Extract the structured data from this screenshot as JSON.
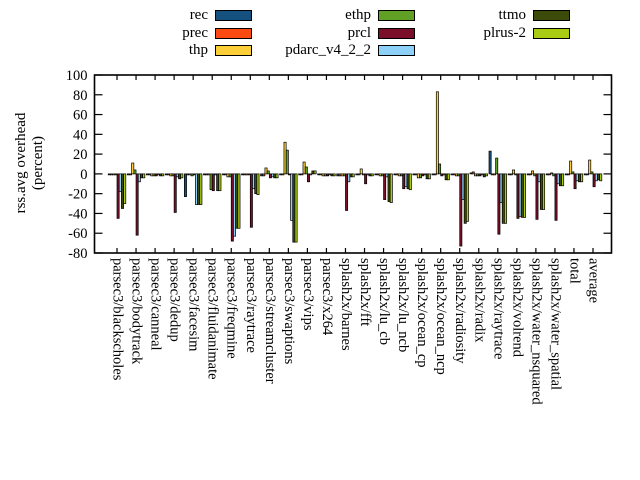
{
  "chart_data": {
    "type": "bar",
    "title": "",
    "ylabel": "rss.avg overhead (percent)",
    "ylabel_lines": [
      "rss.avg overhead",
      "(percent)"
    ],
    "ylim": [
      -80,
      100
    ],
    "yticks": [
      100,
      80,
      60,
      40,
      20,
      0,
      -20,
      -40,
      -60,
      -80
    ],
    "grid": false,
    "legend_position": "top-center-3-columns",
    "bar_border_color": "#000000",
    "categories": [
      "parsec3/blackscholes",
      "parsec3/bodytrack",
      "parsec3/canneal",
      "parsec3/dedup",
      "parsec3/facesim",
      "parsec3/fluidanimate",
      "parsec3/freqmine",
      "parsec3/raytrace",
      "parsec3/streamcluster",
      "parsec3/swaptions",
      "parsec3/vips",
      "parsec3/x264",
      "splash2x/barnes",
      "splash2x/fft",
      "splash2x/lu_cb",
      "splash2x/lu_ncb",
      "splash2x/ocean_cp",
      "splash2x/ocean_ncp",
      "splash2x/radiosity",
      "splash2x/radix",
      "splash2x/raytrace",
      "splash2x/volrend",
      "splash2x/water_nsquared",
      "splash2x/water_spatial",
      "total",
      "average"
    ],
    "series": [
      {
        "name": "rec",
        "color": "#15517f",
        "legend_col": 0,
        "legend_row": 0,
        "values": [
          -1,
          -1,
          -1,
          -1,
          -23,
          -1,
          -1,
          -1,
          -2,
          -1,
          -1,
          -1,
          -2,
          -1,
          -1,
          -1,
          -1,
          -1,
          -1,
          1,
          23,
          -1,
          -1,
          -1,
          -1,
          -1
        ]
      },
      {
        "name": "prec",
        "color": "#fb4a12",
        "legend_col": 0,
        "legend_row": 1,
        "values": [
          -1,
          -1,
          -1,
          -1,
          -1,
          -1,
          -1,
          -1,
          -2,
          -1,
          -1,
          -1,
          -2,
          -1,
          -1,
          -1,
          -1,
          -1,
          -1,
          2,
          -1,
          -1,
          -1,
          -1,
          -1,
          -1
        ]
      },
      {
        "name": "thp",
        "color": "#fccf38",
        "legend_col": 0,
        "legend_row": 2,
        "values": [
          -1,
          11,
          -2,
          -2,
          -1,
          -1,
          -3,
          -1,
          6,
          32,
          12,
          -2,
          -2,
          5,
          -2,
          -2,
          -4,
          83,
          -2,
          -2,
          -1,
          4,
          3,
          1,
          13,
          14
        ]
      },
      {
        "name": "ethp",
        "color": "#60a125",
        "legend_col": 1,
        "legend_row": 0,
        "values": [
          -1,
          4,
          -2,
          -2,
          -2,
          -16,
          -3,
          -1,
          3,
          24,
          7,
          -2,
          -2,
          -1,
          -2,
          -2,
          -4,
          10,
          -2,
          -2,
          16,
          -1,
          -2,
          -2,
          2,
          2
        ]
      },
      {
        "name": "prcl",
        "color": "#7b0e28",
        "legend_col": 1,
        "legend_row": 1,
        "values": [
          -45,
          -62,
          -2,
          -39,
          -1,
          -17,
          -68,
          -54,
          -4,
          -1,
          -8,
          -2,
          -37,
          -10,
          -26,
          -15,
          -2,
          -2,
          -73,
          -2,
          -61,
          -45,
          -46,
          -47,
          -15,
          -13
        ]
      },
      {
        "name": "pdarc_v4_2_2",
        "color": "#8dd0f8",
        "legend_col": 1,
        "legend_row": 2,
        "values": [
          -18,
          -8,
          -1,
          -3,
          -31,
          -1,
          -63,
          -15,
          -3,
          -47,
          -1,
          -1,
          -8,
          -1,
          -3,
          -13,
          -1,
          -1,
          -26,
          -1,
          -29,
          -43,
          -8,
          -10,
          -7,
          -7
        ]
      },
      {
        "name": "ttmo",
        "color": "#3c4a0a",
        "legend_col": 2,
        "legend_row": 0,
        "values": [
          -35,
          -4,
          -2,
          -5,
          -31,
          -17,
          -55,
          -20,
          -4,
          -69,
          3,
          -2,
          -3,
          -2,
          -28,
          -15,
          -5,
          -6,
          -50,
          -3,
          -50,
          -44,
          -36,
          -12,
          -8,
          -6
        ]
      },
      {
        "name": "plrus-2",
        "color": "#a9cb11",
        "legend_col": 2,
        "legend_row": 1,
        "values": [
          -30,
          -4,
          -2,
          -4,
          -31,
          -17,
          -55,
          -21,
          -4,
          -69,
          3,
          -2,
          -3,
          -2,
          -29,
          -16,
          -5,
          -6,
          -48,
          -2,
          -50,
          -44,
          -36,
          -12,
          -8,
          -7
        ]
      }
    ]
  }
}
